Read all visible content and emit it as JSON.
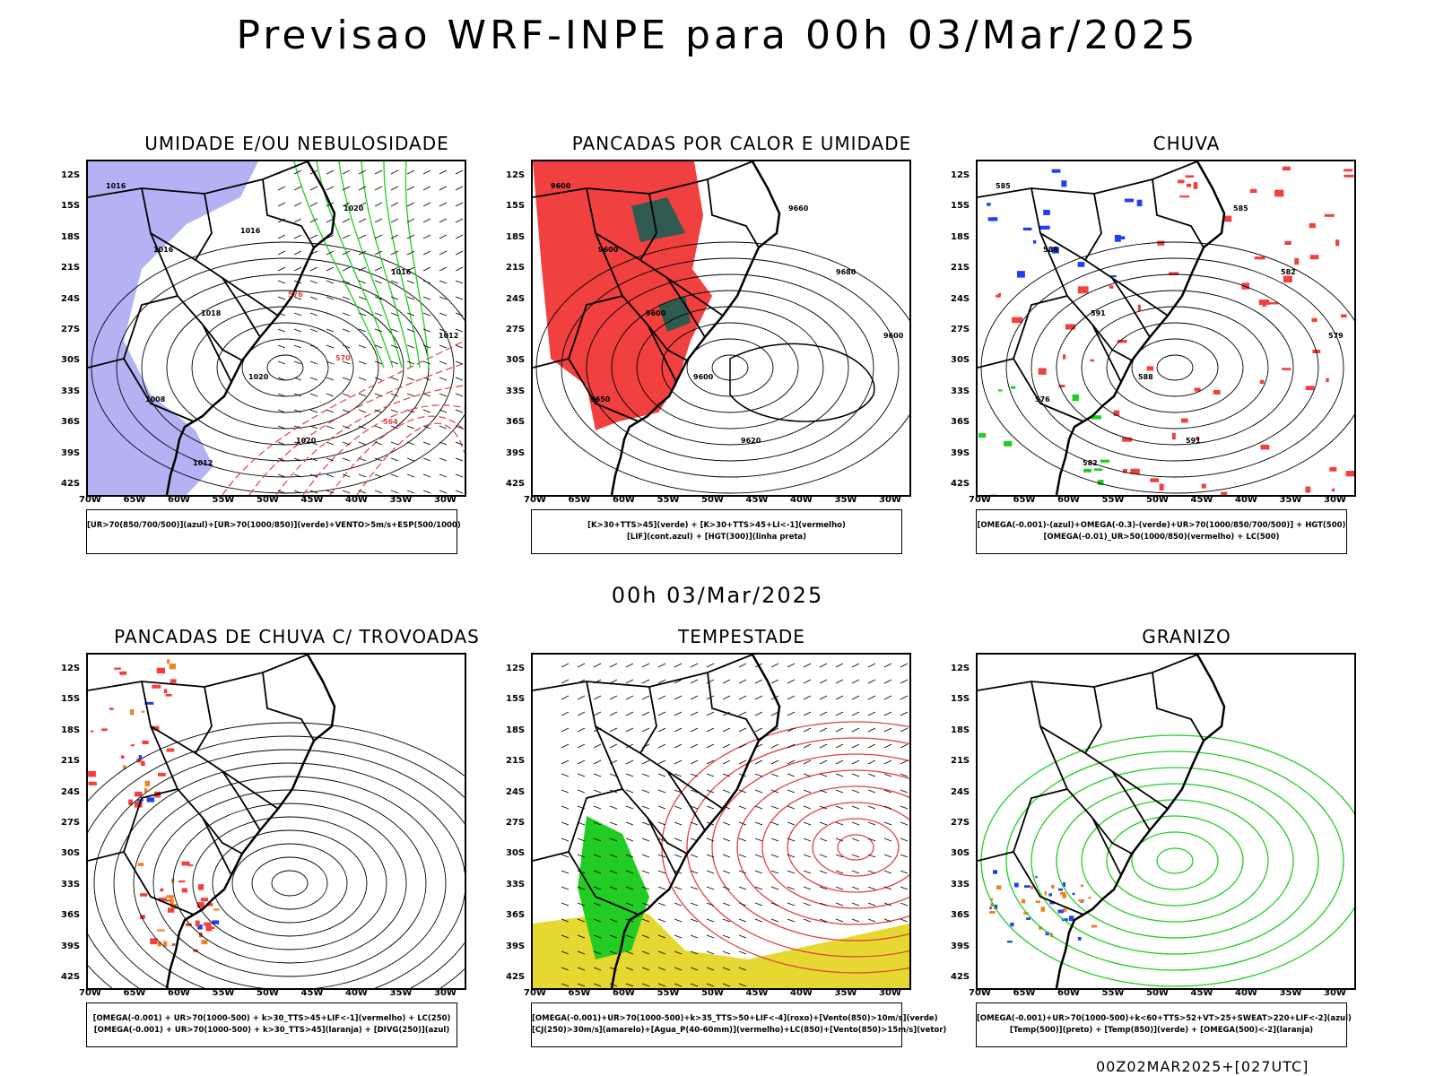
{
  "title": "Previsao WRF-INPE  para 00h 03/Mar/2025",
  "mid_date": "00h 03/Mar/2025",
  "footer": "00Z02MAR2025+[027UTC]",
  "lat_ticks": [
    "12S",
    "15S",
    "18S",
    "21S",
    "24S",
    "27S",
    "30S",
    "33S",
    "36S",
    "39S",
    "42S"
  ],
  "lon_ticks": [
    "70W",
    "65W",
    "60W",
    "55W",
    "50W",
    "45W",
    "40W",
    "35W",
    "30W"
  ],
  "colors": {
    "humid_blue": "#9a9af0",
    "green": "#22cc22",
    "red": "#f04040",
    "yellow": "#e6d830",
    "orange": "#f08020",
    "blue": "#2040f0"
  },
  "panels": [
    {
      "id": "umidade",
      "title": "UMIDADE E/OU NEBULOSIDADE",
      "legend": [
        "[UR>70(850/700/500)](azul)+[UR>70(1000/850)](verde)+VENTO>5m/s+ESP(500/1000)"
      ]
    },
    {
      "id": "pancadas-calor",
      "title": "PANCADAS POR CALOR E UMIDADE",
      "legend": [
        "[K>30+TTS>45](verde) + [K>30+TTS>45+LI<-1](vermelho)",
        "[LIF](cont.azul) + [HGT(300)](linha preta)"
      ]
    },
    {
      "id": "chuva",
      "title": "CHUVA",
      "legend": [
        "[OMEGA(-0.001)-(azul)+OMEGA(-0.3)-(verde)+UR>70(1000/850/700/500)] + HGT(500)",
        "[OMEGA(-0.01)_UR>50(1000/850)(vermelho) + LC(500)"
      ]
    },
    {
      "id": "trovoadas",
      "title": "PANCADAS DE CHUVA C/ TROVOADAS",
      "legend": [
        "[OMEGA(-0.001) + UR>70(1000-500) + k>30_TTS>45+LIF<-1](vermelho) + LC(250)",
        "[OMEGA(-0.001) + UR>70(1000-500) + k>30_TTS>45](laranja) + [DIVG(250)](azul)"
      ]
    },
    {
      "id": "tempestade",
      "title": "TEMPESTADE",
      "legend": [
        "[OMEGA(-0.001)+UR>70(1000-500)+k>35_TTS>50+LIF<-4](roxo)+[Vento(850)>10m/s](verde)",
        "[CJ(250)>30m/s](amarelo)+[Agua_P(40-60mm)](vermelho)+LC(850)+[Vento(850)>15m/s](vetor)"
      ]
    },
    {
      "id": "granizo",
      "title": "GRANIZO",
      "legend": [
        "[OMEGA(-0.001)+UR>70(1000-500)+k<60+TTS>52+VT>25+SWEAT>220+LIF<-2](azul)",
        "[Temp(500)](preto) + [Temp(850)](verde) + [OMEGA(500)<-2](laranja)"
      ]
    }
  ],
  "map_labels": {
    "umidade": [
      "1016",
      "1016",
      "1018",
      "1020",
      "1020",
      "1020",
      "1016",
      "1012",
      "1008",
      "1012",
      "1016",
      "576",
      "570",
      "564"
    ],
    "pancadas-calor": [
      "9600",
      "9600",
      "9600",
      "9600",
      "9620",
      "9660",
      "9680",
      "9600",
      "9650"
    ],
    "chuva": [
      "585",
      "588",
      "591",
      "588",
      "591",
      "585",
      "582",
      "579",
      "576",
      "582"
    ]
  }
}
